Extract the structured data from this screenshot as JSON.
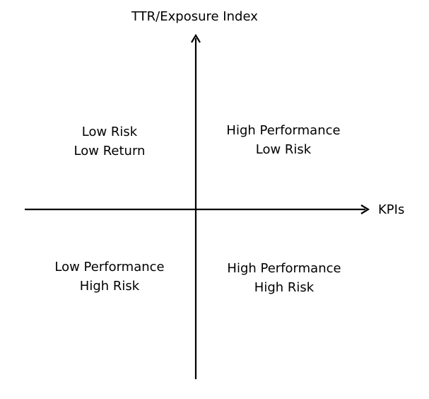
{
  "axes": {
    "y_label": "TTR/Exposure Index",
    "x_label": "KPIs"
  },
  "quadrants": {
    "top_left": {
      "line1": "Low Risk",
      "line2": "Low Return"
    },
    "top_right": {
      "line1": "High Performance",
      "line2": "Low Risk"
    },
    "bottom_left": {
      "line1": "Low Performance",
      "line2": "High Risk"
    },
    "bottom_right": {
      "line1": "High Performance",
      "line2": "High Risk"
    }
  },
  "colors": {
    "ink": "#000000",
    "background": "#ffffff"
  }
}
